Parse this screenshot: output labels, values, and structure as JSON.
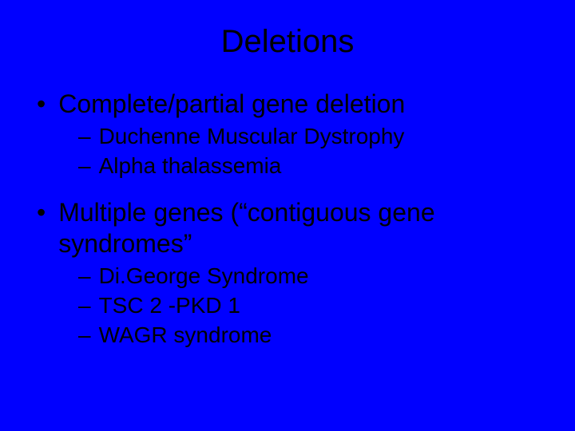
{
  "slide": {
    "background_color": "#0000ff",
    "text_color": "#000000",
    "title": "Deletions",
    "title_fontsize": 40,
    "bullet_l1_fontsize": 32,
    "bullet_l2_fontsize": 28,
    "bullets": [
      {
        "text": "Complete/partial gene deletion",
        "sub": [
          "Duchenne Muscular Dystrophy",
          "Alpha thalassemia"
        ]
      },
      {
        "text": "Multiple genes (“contiguous gene syndromes”",
        "sub": [
          "Di.George Syndrome",
          "TSC 2 -PKD 1",
          "WAGR syndrome"
        ]
      }
    ]
  }
}
